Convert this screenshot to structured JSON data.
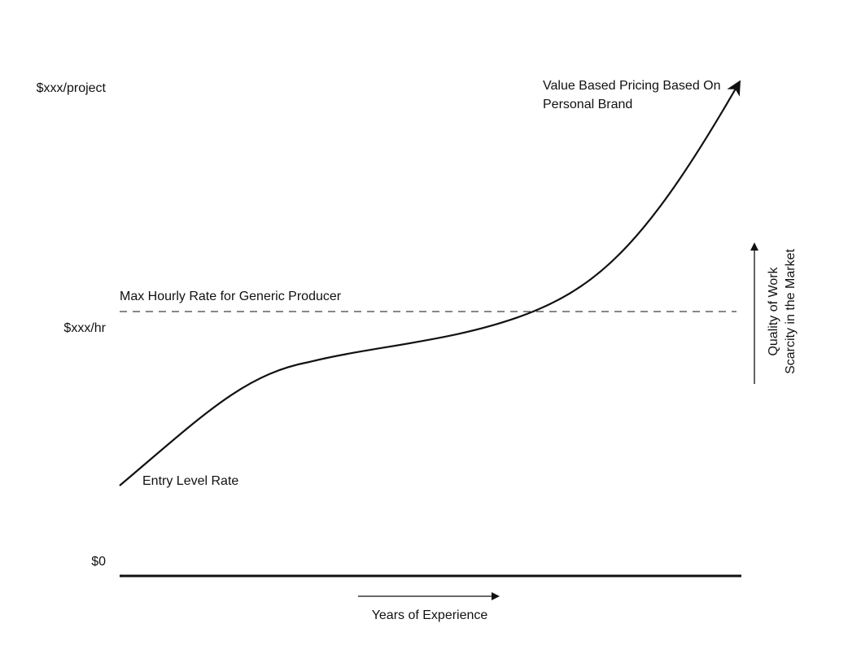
{
  "y_axis_labels": {
    "top": "$xxx/project",
    "middle": "$xxx/hr",
    "bottom": "$0"
  },
  "annotations": {
    "max_hourly": "Max Hourly Rate for Generic Producer",
    "entry": "Entry Level Rate",
    "value_based": [
      "Value Based Pricing Based On",
      "Personal Brand"
    ]
  },
  "x_axis_label": "Years of Experience",
  "right_axis_labels": [
    "Quality of Work",
    "Scarcity in the Market"
  ]
}
